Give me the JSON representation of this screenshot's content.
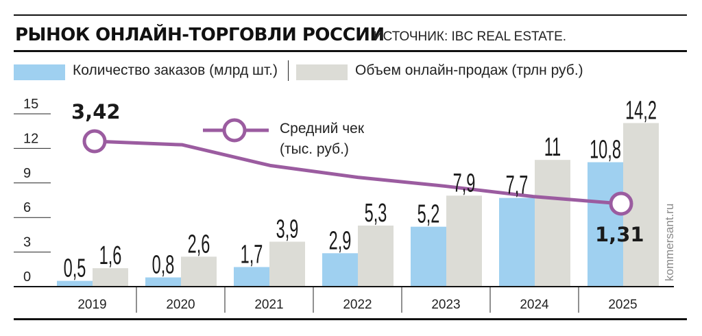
{
  "header": {
    "title": "РЫНОК ОНЛАЙН-ТОРГОВЛИ РОССИИ",
    "source": "ИСТОЧНИК: IBC REAL ESTATE."
  },
  "legend": {
    "orders": "Количество заказов (млрд шт.)",
    "sales": "Объем онлайн-продаж (трлн руб.)",
    "avg_check_line1": "Средний чек",
    "avg_check_line2": "(тыс. руб.)"
  },
  "brand": "kommersant.ru",
  "colors": {
    "orders": "#9fd0f0",
    "sales": "#dcdcd6",
    "line": "#9b5ca0",
    "text": "#1a1a1a"
  },
  "chart_data": {
    "type": "bar",
    "title": "РЫНОК ОНЛАЙН-ТОРГОВЛИ РОССИИ",
    "categories": [
      "2019",
      "2020",
      "2021",
      "2022",
      "2023",
      "2024",
      "2025"
    ],
    "ylim": [
      0,
      15
    ],
    "yticks": [
      0,
      3,
      6,
      9,
      12,
      15
    ],
    "series": [
      {
        "name": "Количество заказов (млрд шт.)",
        "values": [
          0.5,
          0.8,
          1.7,
          2.9,
          5.2,
          7.7,
          10.8
        ],
        "labels": [
          "0,5",
          "0,8",
          "1,7",
          "2,9",
          "5,2",
          "7,7",
          "10,8"
        ]
      },
      {
        "name": "Объем онлайн-продаж (трлн руб.)",
        "values": [
          1.6,
          2.6,
          3.9,
          5.3,
          7.9,
          11,
          14.2
        ],
        "labels": [
          "1,6",
          "2,6",
          "3,9",
          "5,3",
          "7,9",
          "11",
          "14,2"
        ]
      }
    ],
    "line": {
      "name": "Средний чек (тыс. руб.)",
      "values": [
        3.42,
        3.3,
        2.6,
        2.2,
        1.9,
        1.55,
        1.31
      ],
      "labels": {
        "first": "3,42",
        "last": "1,31"
      }
    }
  }
}
